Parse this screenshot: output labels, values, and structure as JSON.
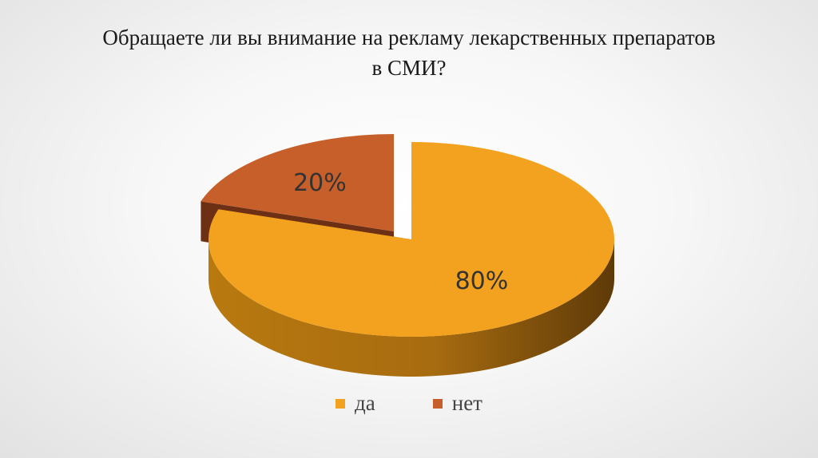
{
  "chart_data": {
    "type": "pie",
    "title_lines": [
      "Обращаете ли вы внимание на рекламу лекарственных препаратов",
      "в СМИ?"
    ],
    "three_d": true,
    "exploded": true,
    "categories": [
      "да",
      "нет"
    ],
    "values": [
      80,
      20
    ],
    "data_labels": [
      "80%",
      "20%"
    ],
    "colors": [
      "#F2A21E",
      "#C65F2A"
    ],
    "side_colors": [
      "#9C6310",
      "#6E3014"
    ],
    "legend_position": "bottom"
  }
}
